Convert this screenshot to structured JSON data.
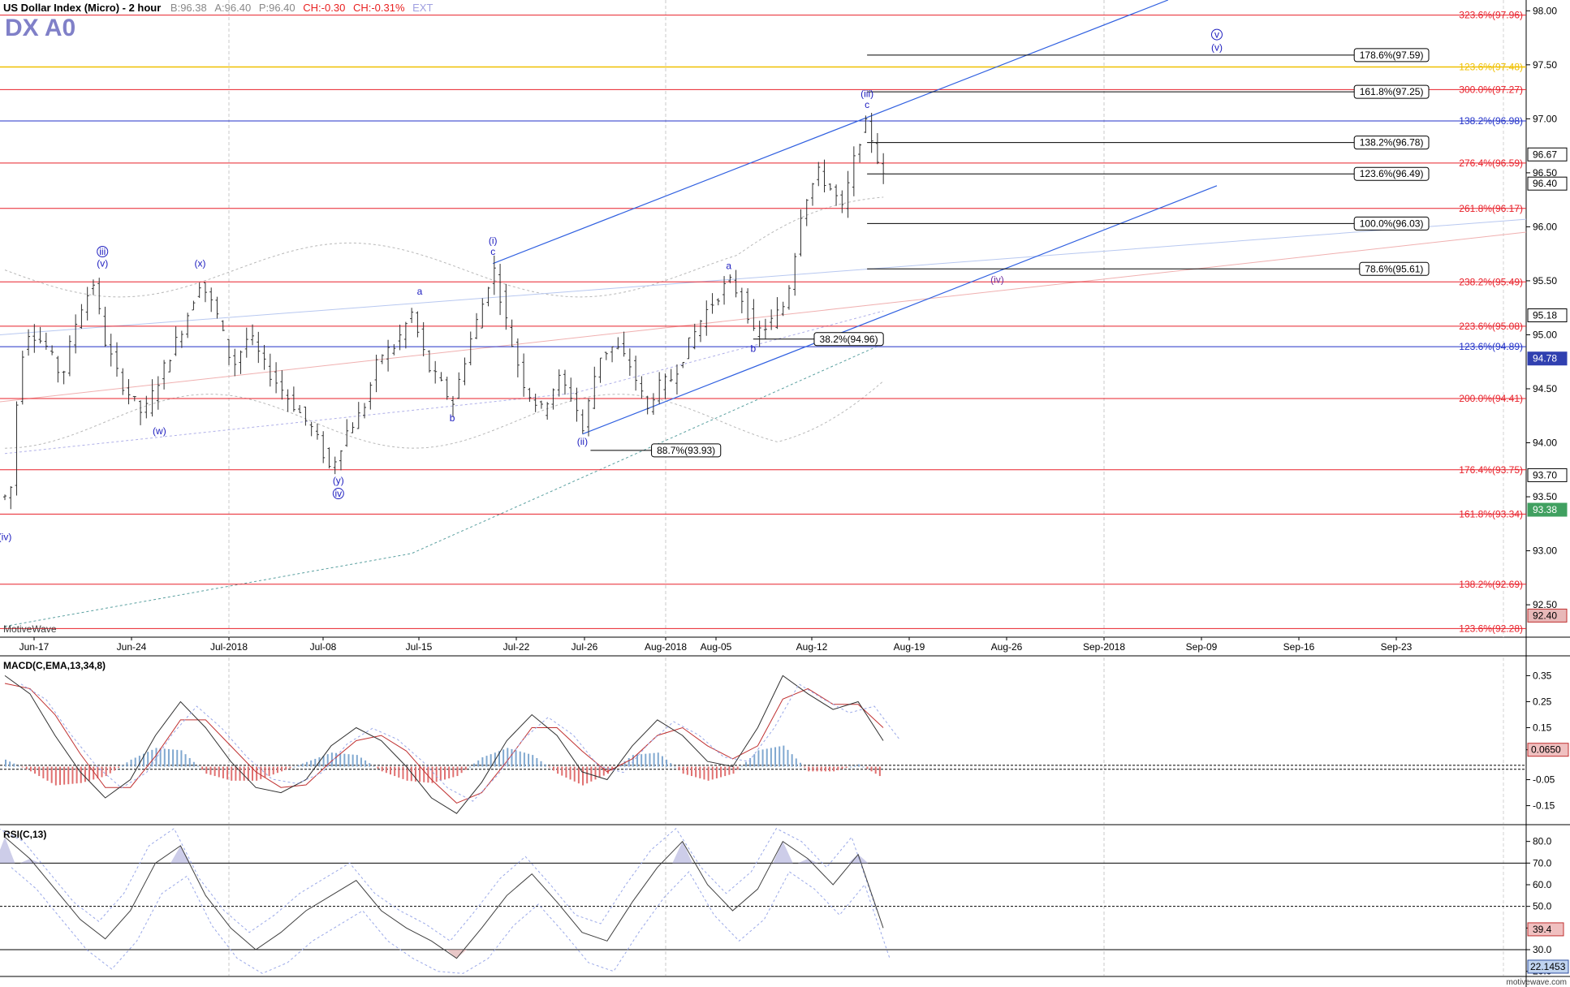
{
  "header": {
    "title": "US Dollar Index (Micro) - 2 hour",
    "bid": "B:96.38",
    "ask": "A:96.40",
    "price": "P:96.40",
    "change": "CH:-0.30",
    "change_pct": "CH:-0.31%",
    "ext": "EXT",
    "symbol": "DX A0",
    "watermark": "MotiveWave",
    "site": "motivewave.com"
  },
  "colors": {
    "red_level": "#e8202a",
    "blue_level": "#2030c8",
    "gold_level": "#f0c000",
    "channel": "#3060e0",
    "wave_label": "#2020c0",
    "wave_iv": "#7030a0",
    "candles": "#303030",
    "macd_hist_pos": "#80a8d0",
    "macd_hist_neg": "#e07070",
    "macd_line": "#303030",
    "signal_line": "#c03030",
    "rsi_line": "#404040",
    "band_dashed": "#8888ff"
  },
  "chart_data": [
    {
      "type": "candlestick",
      "panel": "price",
      "x_axis_labels": [
        "Jun-17",
        "Jun-24",
        "Jul-2018",
        "Jul-08",
        "Jul-15",
        "Jul-22",
        "Jul-26",
        "Aug-2018",
        "Aug-05",
        "Aug-12",
        "Aug-19",
        "Aug-26",
        "Sep-2018",
        "Sep-09",
        "Sep-16",
        "Sep-23"
      ],
      "ylim": [
        92.2,
        98.1
      ],
      "y_ticks": [
        98.0,
        97.5,
        97.0,
        96.5,
        96.0,
        95.5,
        95.0,
        94.5,
        94.0,
        93.5,
        93.0,
        92.5
      ],
      "price_path": [
        {
          "x": 0,
          "y": 93.5
        },
        {
          "x": 0.5,
          "y": 93.25
        },
        {
          "x": 1,
          "y": 94.0
        },
        {
          "x": 2,
          "y": 94.8
        },
        {
          "x": 3,
          "y": 95.05
        },
        {
          "x": 5,
          "y": 94.9
        },
        {
          "x": 7,
          "y": 94.6
        },
        {
          "x": 9,
          "y": 95.2
        },
        {
          "x": 11,
          "y": 95.5
        },
        {
          "x": 12,
          "y": 95.0
        },
        {
          "x": 14,
          "y": 94.6
        },
        {
          "x": 17,
          "y": 94.25
        },
        {
          "x": 19,
          "y": 94.6
        },
        {
          "x": 22,
          "y": 95.1
        },
        {
          "x": 24,
          "y": 95.5
        },
        {
          "x": 26,
          "y": 95.2
        },
        {
          "x": 28,
          "y": 94.7
        },
        {
          "x": 30,
          "y": 95.0
        },
        {
          "x": 32,
          "y": 94.7
        },
        {
          "x": 35,
          "y": 94.4
        },
        {
          "x": 38,
          "y": 94.1
        },
        {
          "x": 40,
          "y": 93.75
        },
        {
          "x": 42,
          "y": 94.1
        },
        {
          "x": 44,
          "y": 94.3
        },
        {
          "x": 46,
          "y": 94.8
        },
        {
          "x": 48,
          "y": 94.9
        },
        {
          "x": 50,
          "y": 95.2
        },
        {
          "x": 52,
          "y": 94.7
        },
        {
          "x": 54,
          "y": 94.5
        },
        {
          "x": 55,
          "y": 94.35
        },
        {
          "x": 57,
          "y": 94.9
        },
        {
          "x": 59,
          "y": 95.35
        },
        {
          "x": 60,
          "y": 95.65
        },
        {
          "x": 62,
          "y": 95.0
        },
        {
          "x": 64,
          "y": 94.5
        },
        {
          "x": 66,
          "y": 94.3
        },
        {
          "x": 68,
          "y": 94.6
        },
        {
          "x": 70,
          "y": 94.4
        },
        {
          "x": 71,
          "y": 94.1
        },
        {
          "x": 73,
          "y": 94.8
        },
        {
          "x": 75,
          "y": 94.9
        },
        {
          "x": 77,
          "y": 94.7
        },
        {
          "x": 79,
          "y": 94.3
        },
        {
          "x": 80,
          "y": 94.5
        },
        {
          "x": 82,
          "y": 94.6
        },
        {
          "x": 84,
          "y": 94.9
        },
        {
          "x": 86,
          "y": 95.2
        },
        {
          "x": 88,
          "y": 95.4
        },
        {
          "x": 89,
          "y": 95.5
        },
        {
          "x": 91,
          "y": 95.3
        },
        {
          "x": 92,
          "y": 95.0
        },
        {
          "x": 94,
          "y": 95.1
        },
        {
          "x": 96,
          "y": 95.3
        },
        {
          "x": 97,
          "y": 95.7
        },
        {
          "x": 98,
          "y": 96.2
        },
        {
          "x": 100,
          "y": 96.5
        },
        {
          "x": 102,
          "y": 96.3
        },
        {
          "x": 103,
          "y": 96.15
        },
        {
          "x": 104,
          "y": 96.5
        },
        {
          "x": 105,
          "y": 96.8
        },
        {
          "x": 106,
          "y": 96.97
        },
        {
          "x": 107,
          "y": 96.7
        },
        {
          "x": 108,
          "y": 96.45
        }
      ],
      "candles_shown": 150
    },
    {
      "type": "line",
      "panel": "macd",
      "title": "MACD(C,EMA,13,34,8)",
      "y_ticks": [
        0.35,
        0.25,
        0.15,
        0.065,
        -0.05,
        -0.15
      ],
      "ylim": [
        -0.22,
        0.42
      ],
      "current_value": 0.065,
      "series": [
        {
          "name": "macd",
          "values": [
            0.35,
            0.28,
            0.12,
            -0.02,
            -0.12,
            -0.05,
            0.12,
            0.25,
            0.15,
            0.02,
            -0.08,
            -0.1,
            -0.05,
            0.08,
            0.15,
            0.1,
            0.0,
            -0.12,
            -0.18,
            -0.06,
            0.1,
            0.2,
            0.12,
            -0.02,
            -0.05,
            0.08,
            0.18,
            0.12,
            0.02,
            0.0,
            0.15,
            0.35,
            0.28,
            0.22,
            0.25,
            0.1
          ]
        },
        {
          "name": "signal",
          "values": [
            0.32,
            0.3,
            0.2,
            0.05,
            -0.08,
            -0.08,
            0.04,
            0.18,
            0.18,
            0.08,
            -0.02,
            -0.08,
            -0.07,
            0.02,
            0.1,
            0.12,
            0.06,
            -0.05,
            -0.14,
            -0.1,
            0.02,
            0.15,
            0.15,
            0.06,
            -0.02,
            0.03,
            0.12,
            0.15,
            0.08,
            0.03,
            0.08,
            0.26,
            0.3,
            0.24,
            0.24,
            0.15
          ]
        }
      ]
    },
    {
      "type": "line",
      "panel": "rsi",
      "title": "RSI(C,13)",
      "y_ticks": [
        80.0,
        70.0,
        60.0,
        50.0,
        40.0,
        30.0,
        20.0
      ],
      "ylim": [
        18,
        87
      ],
      "current_value": 39.4,
      "lower_value": 22.1453,
      "levels": [
        70,
        50,
        30
      ],
      "series": [
        {
          "name": "rsi",
          "values": [
            82,
            72,
            58,
            44,
            35,
            48,
            70,
            78,
            55,
            40,
            30,
            38,
            48,
            55,
            62,
            48,
            40,
            34,
            26,
            40,
            55,
            65,
            52,
            38,
            34,
            52,
            68,
            80,
            60,
            48,
            58,
            80,
            72,
            60,
            74,
            40
          ]
        }
      ]
    }
  ],
  "levels": [
    {
      "label": "323.6%(97.96)",
      "value": 97.96,
      "color": "red"
    },
    {
      "label": "123.6%(97.48)",
      "value": 97.48,
      "color": "gold"
    },
    {
      "label": "300.0%(97.27)",
      "value": 97.27,
      "color": "red"
    },
    {
      "label": "138.2%(96.98)",
      "value": 96.98,
      "color": "blue"
    },
    {
      "label": "276.4%(96.59)",
      "value": 96.59,
      "color": "red"
    },
    {
      "label": "261.8%(96.17)",
      "value": 96.17,
      "color": "red"
    },
    {
      "label": "238.2%(95.49)",
      "value": 95.49,
      "color": "red"
    },
    {
      "label": "223.6%(95.08)",
      "value": 95.08,
      "color": "red"
    },
    {
      "label": "123.6%(94.89)",
      "value": 94.89,
      "color": "blue"
    },
    {
      "label": "200.0%(94.41)",
      "value": 94.41,
      "color": "red"
    },
    {
      "label": "176.4%(93.75)",
      "value": 93.75,
      "color": "red"
    },
    {
      "label": "161.8%(93.34)",
      "value": 93.34,
      "color": "red"
    },
    {
      "label": "138.2%(92.69)",
      "value": 92.69,
      "color": "red"
    },
    {
      "label": "123.6%(92.28)",
      "value": 92.28,
      "color": "red"
    }
  ],
  "boxed_levels": [
    {
      "label": "178.6%(97.59)",
      "value": 97.59
    },
    {
      "label": "161.8%(97.25)",
      "value": 97.25
    },
    {
      "label": "138.2%(96.78)",
      "value": 96.78
    },
    {
      "label": "123.6%(96.49)",
      "value": 96.49
    },
    {
      "label": "100.0%(96.03)",
      "value": 96.03
    },
    {
      "label": "78.6%(95.61)",
      "value": 95.61
    },
    {
      "label": "38.2%(94.96)",
      "value": 94.96,
      "x0": 92,
      "x1": 108
    },
    {
      "label": "88.7%(93.93)",
      "value": 93.93,
      "x0": 72,
      "x1": 88
    }
  ],
  "price_tags": [
    {
      "label": "96.67",
      "value": 96.67,
      "style": "plain"
    },
    {
      "label": "96.40",
      "value": 96.4,
      "style": "plain"
    },
    {
      "label": "95.18",
      "value": 95.18,
      "style": "plain"
    },
    {
      "label": "94.78",
      "value": 94.78,
      "style": "blue"
    },
    {
      "label": "93.70",
      "value": 93.7,
      "style": "plain"
    },
    {
      "label": "93.38",
      "value": 93.38,
      "style": "green"
    },
    {
      "label": "92.40",
      "value": 92.4,
      "style": "red"
    }
  ],
  "wave_labels": [
    {
      "text": "(iv)",
      "x": 0,
      "y": 93.1
    },
    {
      "text": "(v)",
      "x": 12,
      "y": 95.63
    },
    {
      "text": "iii",
      "x": 12,
      "y": 95.74,
      "circled": true
    },
    {
      "text": "(w)",
      "x": 19,
      "y": 94.08
    },
    {
      "text": "(x)",
      "x": 24,
      "y": 95.63
    },
    {
      "text": "(y)",
      "x": 41,
      "y": 93.62
    },
    {
      "text": "iv",
      "x": 41,
      "y": 93.5,
      "circled": true
    },
    {
      "text": "a",
      "x": 51,
      "y": 95.37
    },
    {
      "text": "b",
      "x": 55,
      "y": 94.2
    },
    {
      "text": "(i)",
      "x": 60,
      "y": 95.84
    },
    {
      "text": "c",
      "x": 60,
      "y": 95.74
    },
    {
      "text": "(ii)",
      "x": 71,
      "y": 93.98
    },
    {
      "text": "a",
      "x": 89,
      "y": 95.61
    },
    {
      "text": "b",
      "x": 92,
      "y": 94.84
    },
    {
      "text": "(iii)",
      "x": 106,
      "y": 97.2
    },
    {
      "text": "c",
      "x": 106,
      "y": 97.1
    },
    {
      "text": "(iv)",
      "x": 122,
      "y": 95.48,
      "color": "purple"
    },
    {
      "text": "v",
      "x": 149,
      "y": 97.75,
      "circled": true
    },
    {
      "text": "(v)",
      "x": 149,
      "y": 97.63
    }
  ],
  "channel": {
    "upper": [
      {
        "x": 60,
        "y": 95.66
      },
      {
        "x": 143,
        "y": 98.1
      }
    ],
    "lower": [
      {
        "x": 71,
        "y": 94.08
      },
      {
        "x": 149,
        "y": 96.38
      }
    ]
  }
}
